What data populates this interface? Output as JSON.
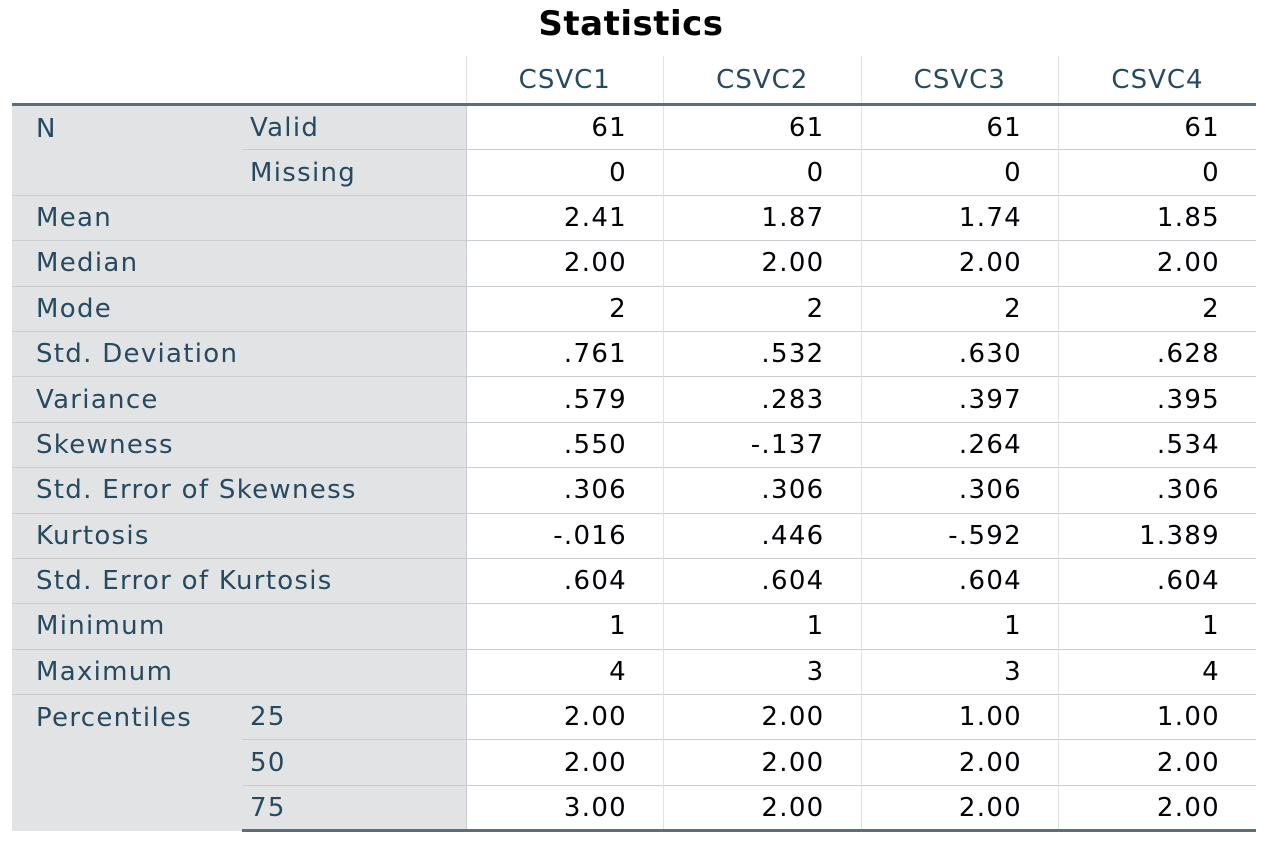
{
  "title": "Statistics",
  "columns": [
    "CSVC1",
    "CSVC2",
    "CSVC3",
    "CSVC4"
  ],
  "rows": {
    "n_label": "N",
    "valid": {
      "label": "Valid",
      "values": [
        "61",
        "61",
        "61",
        "61"
      ]
    },
    "missing": {
      "label": "Missing",
      "values": [
        "0",
        "0",
        "0",
        "0"
      ]
    },
    "mean": {
      "label": "Mean",
      "values": [
        "2.41",
        "1.87",
        "1.74",
        "1.85"
      ]
    },
    "median": {
      "label": "Median",
      "values": [
        "2.00",
        "2.00",
        "2.00",
        "2.00"
      ]
    },
    "mode": {
      "label": "Mode",
      "values": [
        "2",
        "2",
        "2",
        "2"
      ]
    },
    "std_dev": {
      "label": "Std. Deviation",
      "values": [
        ".761",
        ".532",
        ".630",
        ".628"
      ]
    },
    "variance": {
      "label": "Variance",
      "values": [
        ".579",
        ".283",
        ".397",
        ".395"
      ]
    },
    "skewness": {
      "label": "Skewness",
      "values": [
        ".550",
        "-.137",
        ".264",
        ".534"
      ]
    },
    "se_skewness": {
      "label": "Std. Error of Skewness",
      "values": [
        ".306",
        ".306",
        ".306",
        ".306"
      ]
    },
    "kurtosis": {
      "label": "Kurtosis",
      "values": [
        "-.016",
        ".446",
        "-.592",
        "1.389"
      ]
    },
    "se_kurtosis": {
      "label": "Std. Error of Kurtosis",
      "values": [
        ".604",
        ".604",
        ".604",
        ".604"
      ]
    },
    "minimum": {
      "label": "Minimum",
      "values": [
        "1",
        "1",
        "1",
        "1"
      ]
    },
    "maximum": {
      "label": "Maximum",
      "values": [
        "4",
        "3",
        "3",
        "4"
      ]
    },
    "percentiles_label": "Percentiles",
    "p25": {
      "label": "25",
      "values": [
        "2.00",
        "2.00",
        "1.00",
        "1.00"
      ]
    },
    "p50": {
      "label": "50",
      "values": [
        "2.00",
        "2.00",
        "2.00",
        "2.00"
      ]
    },
    "p75": {
      "label": "75",
      "values": [
        "3.00",
        "2.00",
        "2.00",
        "2.00"
      ]
    }
  }
}
